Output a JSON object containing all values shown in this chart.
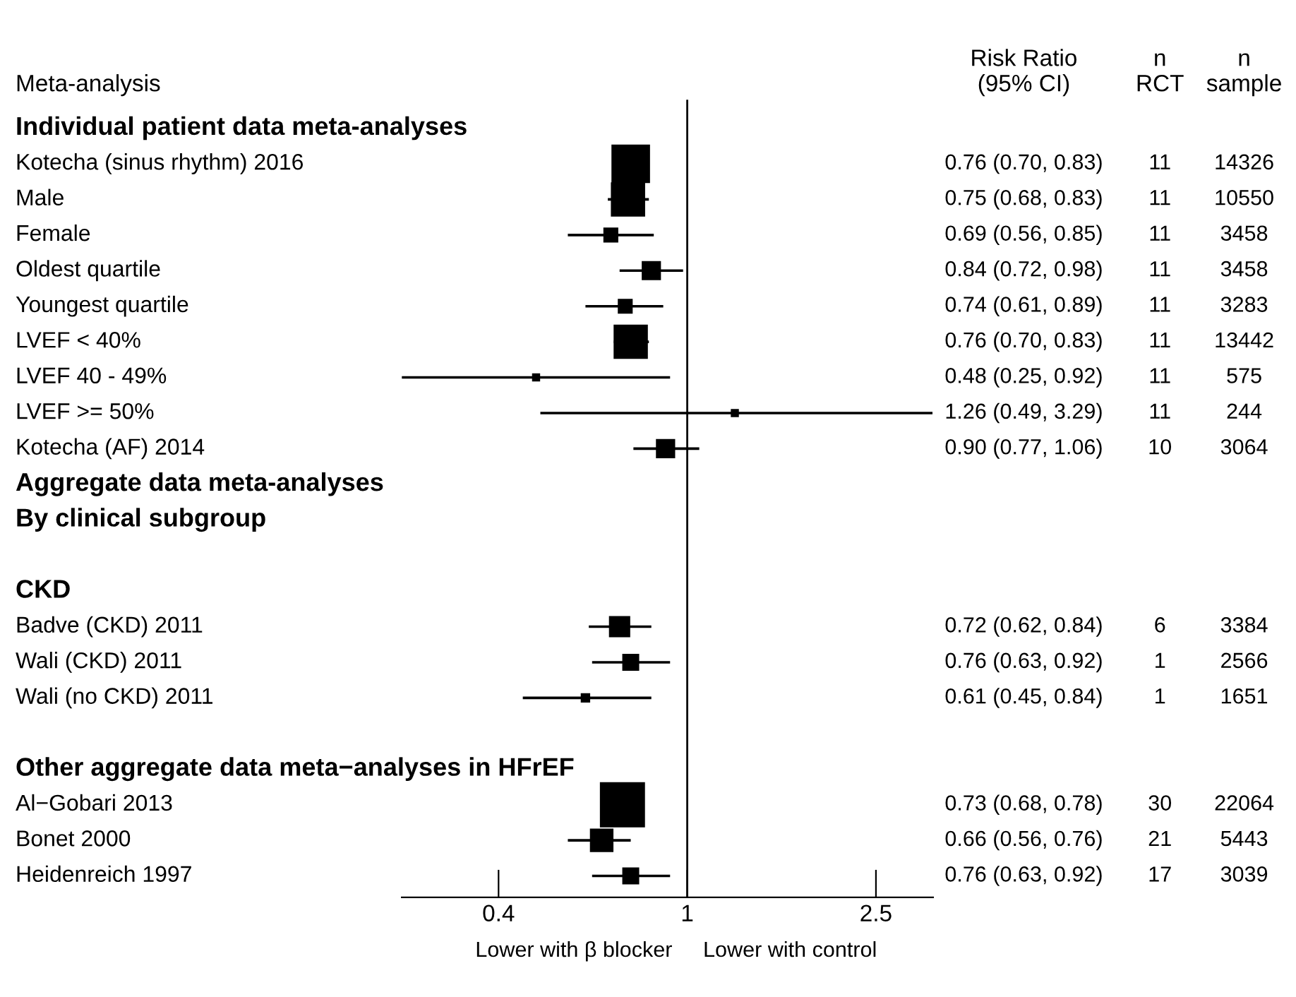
{
  "chart_data": {
    "type": "bubble",
    "orientation": "horizontal",
    "marker": "square",
    "color": "#000000",
    "log": "x",
    "grid": false,
    "categories": [
      "Individual patient data meta-analyses",
      "Kotecha (sinus rhythm) 2016",
      "Male",
      "Female",
      "Oldest quartile",
      "Youngest quartile",
      "LVEF < 40%",
      "LVEF 40 - 49%",
      "LVEF >= 50%",
      "Kotecha (AF) 2014",
      "Aggregate data meta-analyses",
      "By clinical subgroup",
      null,
      "CKD",
      "Badve (CKD) 2011",
      "Wali (CKD) 2011",
      "Wali (no CKD) 2011",
      null,
      "Other aggregate data meta−analyses in HFrEF",
      "Al−Gobari 2013",
      "Bonet 2000",
      "Heidenreich 1997"
    ],
    "values": [
      null,
      0.76,
      0.75,
      0.69,
      0.84,
      0.74,
      0.76,
      0.48,
      1.26,
      0.9,
      null,
      null,
      null,
      null,
      0.72,
      0.76,
      0.61,
      null,
      null,
      0.73,
      0.66,
      0.76
    ],
    "errors": [
      null,
      [
        0.7,
        0.83
      ],
      [
        0.68,
        0.83
      ],
      [
        0.56,
        0.85
      ],
      [
        0.72,
        0.98
      ],
      [
        0.61,
        0.89
      ],
      [
        0.7,
        0.83
      ],
      [
        0.25,
        0.92
      ],
      [
        0.49,
        3.29
      ],
      [
        0.77,
        1.06
      ],
      null,
      null,
      null,
      null,
      [
        0.62,
        0.84
      ],
      [
        0.63,
        0.92
      ],
      [
        0.45,
        0.84
      ],
      null,
      null,
      null,
      [
        0.56,
        0.76
      ],
      [
        0.63,
        0.92
      ]
    ],
    "sizes": [
      null,
      0.72,
      0.56,
      0.09,
      0.16,
      0.09,
      0.56,
      0.02,
      0.02,
      0.16,
      null,
      null,
      null,
      null,
      0.2,
      0.12,
      0.03,
      null,
      null,
      1,
      0.25,
      0.12
    ],
    "value_labels": [
      null,
      "0.76 (0.70, 0.83)",
      "0.75 (0.68, 0.83)",
      "0.69 (0.56, 0.85)",
      "0.84 (0.72, 0.98)",
      "0.74 (0.61, 0.89)",
      "0.76 (0.70, 0.83)",
      "0.48 (0.25, 0.92)",
      "1.26 (0.49, 3.29)",
      "0.90 (0.77, 1.06)",
      null,
      null,
      null,
      null,
      "0.72 (0.62, 0.84)",
      "0.76 (0.63, 0.92)",
      "0.61 (0.45, 0.84)",
      null,
      null,
      "0.73 (0.68, 0.78)",
      "0.66 (0.56, 0.76)",
      "0.76 (0.63, 0.92)"
    ],
    "xlim": [
      0.25,
      3.3
    ],
    "xticks": [
      0.4,
      1,
      2.5
    ],
    "ref_lines": [
      {
        "axis": "x",
        "value": 1,
        "color": "#000000"
      }
    ],
    "annotations": [
      "Meta-analysis",
      "Risk Ratio\n(95% CI)",
      "n\nRCT",
      "n\nsample",
      "Lower with β blocker",
      "Lower with control",
      "11",
      "14326",
      "11",
      "10550",
      "11",
      "3458",
      "11",
      "3458",
      "11",
      "3283",
      "11",
      "13442",
      "11",
      "575",
      "11",
      "244",
      "10",
      "3064",
      "6",
      "3384",
      "1",
      "2566",
      "1",
      "1651",
      "30",
      "22064",
      "21",
      "5443",
      "17",
      "3039"
    ]
  }
}
